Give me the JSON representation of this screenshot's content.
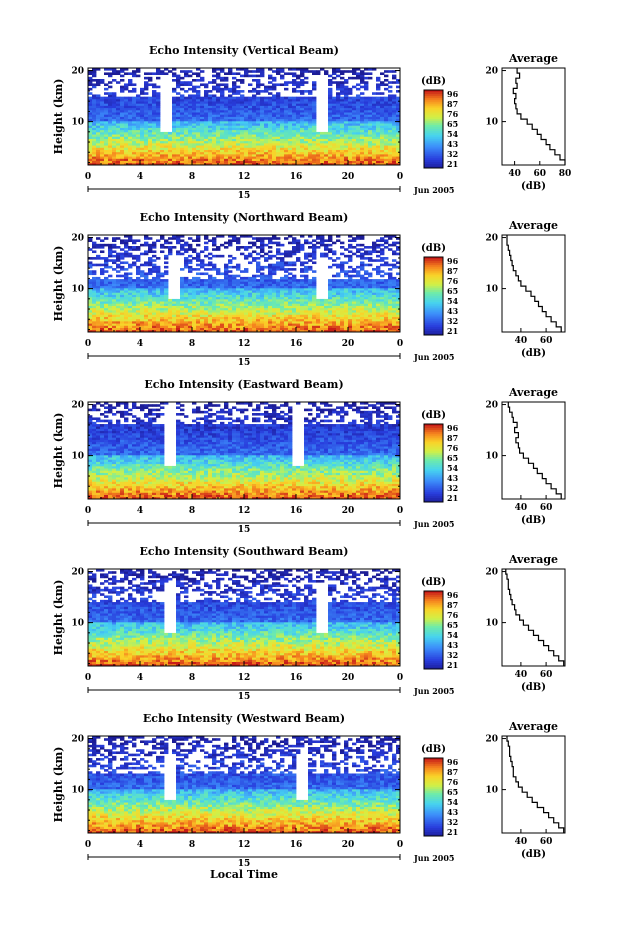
{
  "chart_data": [
    {
      "type": "heatmap",
      "title": "Echo Intensity (Vertical Beam)",
      "ylabel": "Height (km)",
      "x_ticks": [
        "0",
        "4",
        "8",
        "12",
        "16",
        "20",
        "0"
      ],
      "day_label": "15",
      "date_label": "Jun 2005",
      "y_ticks": [
        "20",
        "10"
      ],
      "ylim": [
        1.5,
        20.5
      ],
      "xlim": [
        0,
        24
      ],
      "colorbar": {
        "unit": "(dB)",
        "ticks": [
          "96",
          "87",
          "76",
          "65",
          "54",
          "43",
          "32",
          "21"
        ],
        "range": [
          21,
          96
        ]
      },
      "cutoff_km": 15,
      "gap_times": [
        6.1,
        18.0
      ],
      "average_profile": {
        "title": "Average",
        "xlabel": "(dB)",
        "x_ticks": [
          "40",
          "60",
          "80"
        ],
        "xlim": [
          30,
          80
        ],
        "y_ticks": [
          "20",
          "10"
        ],
        "heights_km": [
          2,
          3,
          4,
          5,
          6,
          7,
          8,
          9,
          10,
          11,
          12,
          13,
          14,
          15,
          16,
          17,
          18,
          19,
          20
        ],
        "values_db": [
          80,
          76,
          72,
          68,
          65,
          61,
          58,
          54,
          50,
          45,
          42,
          41,
          40,
          41,
          39,
          42,
          41,
          44,
          42
        ]
      }
    },
    {
      "type": "heatmap",
      "title": "Echo Intensity (Northward Beam)",
      "ylabel": "Height (km)",
      "x_ticks": [
        "0",
        "4",
        "8",
        "12",
        "16",
        "20",
        "0"
      ],
      "day_label": "15",
      "date_label": "Jun 2005",
      "y_ticks": [
        "20",
        "10"
      ],
      "ylim": [
        1.5,
        20.5
      ],
      "xlim": [
        0,
        24
      ],
      "colorbar": {
        "unit": "(dB)",
        "ticks": [
          "96",
          "87",
          "76",
          "65",
          "54",
          "43",
          "32",
          "21"
        ],
        "range": [
          21,
          96
        ]
      },
      "cutoff_km": 12,
      "gap_times": [
        6.5,
        18.0
      ],
      "average_profile": {
        "title": "Average",
        "xlabel": "(dB)",
        "x_ticks": [
          "40",
          "60"
        ],
        "xlim": [
          25,
          75
        ],
        "y_ticks": [
          "20",
          "10"
        ],
        "heights_km": [
          2,
          3,
          4,
          5,
          6,
          7,
          8,
          9,
          10,
          11,
          12,
          13,
          14,
          15,
          16,
          17,
          18,
          19,
          20
        ],
        "values_db": [
          72,
          68,
          64,
          60,
          57,
          54,
          51,
          48,
          44,
          40,
          38,
          36,
          34,
          33,
          32,
          31,
          30,
          29,
          29
        ]
      }
    },
    {
      "type": "heatmap",
      "title": "Echo Intensity (Eastward Beam)",
      "ylabel": "Height (km)",
      "x_ticks": [
        "0",
        "4",
        "8",
        "12",
        "16",
        "20",
        "0"
      ],
      "day_label": "15",
      "date_label": "Jun 2005",
      "y_ticks": [
        "20",
        "10"
      ],
      "ylim": [
        1.5,
        20.5
      ],
      "xlim": [
        0,
        24
      ],
      "colorbar": {
        "unit": "(dB)",
        "ticks": [
          "96",
          "87",
          "76",
          "65",
          "54",
          "43",
          "32",
          "21"
        ],
        "range": [
          21,
          96
        ]
      },
      "cutoff_km": 16,
      "gap_times": [
        6.3,
        16.2
      ],
      "average_profile": {
        "title": "Average",
        "xlabel": "(dB)",
        "x_ticks": [
          "40",
          "60"
        ],
        "xlim": [
          25,
          75
        ],
        "y_ticks": [
          "20",
          "10"
        ],
        "heights_km": [
          2,
          3,
          4,
          5,
          6,
          7,
          8,
          9,
          10,
          11,
          12,
          13,
          14,
          15,
          16,
          17,
          18,
          19,
          20
        ],
        "values_db": [
          72,
          68,
          64,
          60,
          57,
          53,
          50,
          46,
          42,
          39,
          38,
          36,
          38,
          35,
          37,
          34,
          33,
          31,
          30
        ]
      }
    },
    {
      "type": "heatmap",
      "title": "Echo Intensity (Southward Beam)",
      "ylabel": "Height (km)",
      "x_ticks": [
        "0",
        "4",
        "8",
        "12",
        "16",
        "20",
        "0"
      ],
      "day_label": "15",
      "date_label": "Jun 2005",
      "y_ticks": [
        "20",
        "10"
      ],
      "ylim": [
        1.5,
        20.5
      ],
      "xlim": [
        0,
        24
      ],
      "colorbar": {
        "unit": "(dB)",
        "ticks": [
          "96",
          "87",
          "76",
          "65",
          "54",
          "43",
          "32",
          "21"
        ],
        "range": [
          21,
          96
        ]
      },
      "cutoff_km": 14,
      "gap_times": [
        6.2,
        18.0
      ],
      "average_profile": {
        "title": "Average",
        "xlabel": "(dB)",
        "x_ticks": [
          "40",
          "60"
        ],
        "xlim": [
          25,
          75
        ],
        "y_ticks": [
          "20",
          "10"
        ],
        "heights_km": [
          2,
          3,
          4,
          5,
          6,
          7,
          8,
          9,
          10,
          11,
          12,
          13,
          14,
          15,
          16,
          17,
          18,
          19,
          20
        ],
        "values_db": [
          74,
          70,
          66,
          62,
          58,
          54,
          50,
          46,
          42,
          39,
          36,
          35,
          33,
          32,
          31,
          30,
          30,
          29,
          28
        ]
      }
    },
    {
      "type": "heatmap",
      "title": "Echo Intensity (Westward Beam)",
      "ylabel": "Height (km)",
      "x_ticks": [
        "0",
        "4",
        "8",
        "12",
        "16",
        "20",
        "0"
      ],
      "day_label": "15",
      "date_label": "Jun 2005",
      "y_ticks": [
        "20",
        "10"
      ],
      "ylim": [
        1.5,
        20.5
      ],
      "xlim": [
        0,
        24
      ],
      "colorbar": {
        "unit": "(dB)",
        "ticks": [
          "96",
          "87",
          "76",
          "65",
          "54",
          "43",
          "32",
          "21"
        ],
        "range": [
          21,
          96
        ]
      },
      "cutoff_km": 13,
      "gap_times": [
        6.4,
        16.4
      ],
      "average_profile": {
        "title": "Average",
        "xlabel": "(dB)",
        "x_ticks": [
          "40",
          "60"
        ],
        "xlim": [
          25,
          75
        ],
        "y_ticks": [
          "20",
          "10"
        ],
        "heights_km": [
          2,
          3,
          4,
          5,
          6,
          7,
          8,
          9,
          10,
          11,
          12,
          13,
          14,
          15,
          16,
          17,
          18,
          19,
          20
        ],
        "values_db": [
          74,
          70,
          66,
          62,
          58,
          53,
          49,
          45,
          41,
          38,
          36,
          34,
          34,
          33,
          32,
          31,
          31,
          30,
          29
        ]
      }
    }
  ],
  "xlabel": "Local Time"
}
